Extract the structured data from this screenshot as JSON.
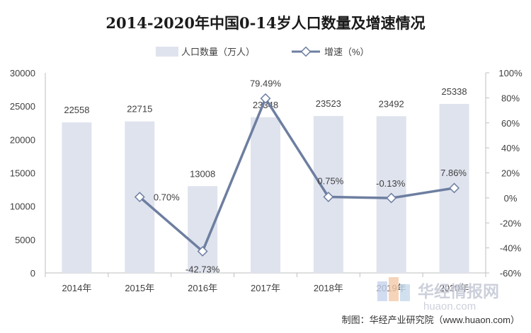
{
  "chart_data": {
    "type": "bar+line",
    "title": "2014-2020年中国0-14岁人口数量及增速情况",
    "categories": [
      "2014年",
      "2015年",
      "2016年",
      "2017年",
      "2018年",
      "2019年",
      "2020年"
    ],
    "series": [
      {
        "name": "人口数量（万人）",
        "type": "bar",
        "axis": "left",
        "values": [
          22558,
          22715,
          13008,
          23348,
          23523,
          23492,
          25338
        ],
        "labels": [
          "22558",
          "22715",
          "13008",
          "23348",
          "23523",
          "23492",
          "25338"
        ],
        "color": "#dfe3ee"
      },
      {
        "name": "增速（%）",
        "type": "line",
        "axis": "right",
        "values": [
          null,
          0.7,
          -42.73,
          79.49,
          0.75,
          -0.13,
          7.86
        ],
        "labels": [
          "",
          "0.70%",
          "-42.73%",
          "79.49%",
          "0.75%",
          "-0.13%",
          "7.86%"
        ],
        "color": "#6d7ea0"
      }
    ],
    "y_left": {
      "min": 0,
      "max": 30000,
      "step": 5000,
      "ticks": [
        "0",
        "5000",
        "10000",
        "15000",
        "20000",
        "25000",
        "30000"
      ]
    },
    "y_right": {
      "min": -60,
      "max": 100,
      "step": 20,
      "ticks": [
        "-60%",
        "-40%",
        "-20%",
        "0%",
        "20%",
        "40%",
        "60%",
        "80%",
        "100%"
      ]
    },
    "grid": false,
    "legend_position": "top-center",
    "source": "制图：华经产业研究院（www.huaon.com）",
    "watermark": {
      "brand": "华经情报网",
      "domain": "huaon.com"
    }
  }
}
